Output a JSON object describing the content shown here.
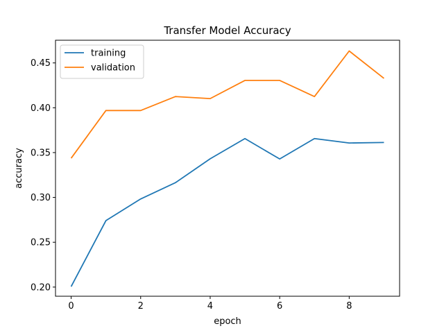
{
  "chart_data": {
    "type": "line",
    "title": "Transfer Model Accuracy",
    "xlabel": "epoch",
    "ylabel": "accuracy",
    "x": [
      0,
      1,
      2,
      3,
      4,
      5,
      6,
      7,
      8,
      9
    ],
    "xlim": [
      -0.45,
      9.45
    ],
    "ylim": [
      0.1898,
      0.4753
    ],
    "xticks": [
      0,
      2,
      4,
      6,
      8
    ],
    "xtick_labels": [
      "0",
      "2",
      "4",
      "6",
      "8"
    ],
    "yticks": [
      0.2,
      0.25,
      0.3,
      0.35,
      0.4,
      0.45
    ],
    "ytick_labels": [
      "0.20",
      "0.25",
      "0.30",
      "0.35",
      "0.40",
      "0.45"
    ],
    "grid": false,
    "legend_position": "upper-left",
    "series": [
      {
        "name": "training",
        "color": "#1f77b4",
        "values": [
          0.2006,
          0.2741,
          0.2983,
          0.3164,
          0.3431,
          0.3656,
          0.3429,
          0.3656,
          0.3607,
          0.3613
        ]
      },
      {
        "name": "validation",
        "color": "#ff7f0e",
        "values": [
          0.3437,
          0.3969,
          0.3969,
          0.4125,
          0.4102,
          0.4305,
          0.4305,
          0.4125,
          0.4633,
          0.4328
        ]
      }
    ]
  }
}
